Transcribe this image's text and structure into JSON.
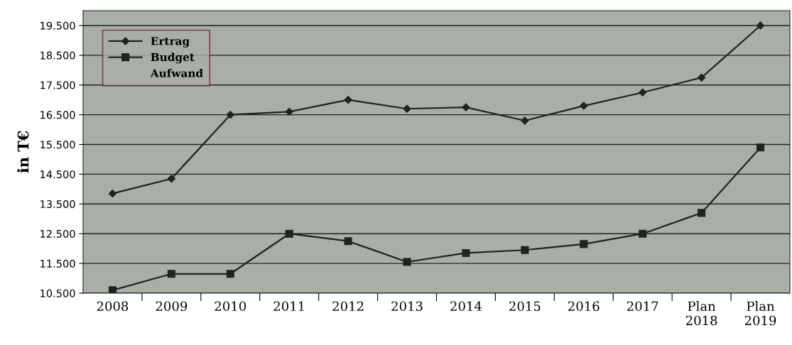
{
  "chart_data": {
    "type": "line",
    "ylabel": "in T€",
    "categories": [
      "2008",
      "2009",
      "2010",
      "2011",
      "2012",
      "2013",
      "2014",
      "2015",
      "2016",
      "2017",
      "Plan\n2018",
      "Plan\n2019"
    ],
    "series": [
      {
        "name": "Ertrag",
        "color": "#1e2420",
        "marker": "diamond",
        "values": [
          13850,
          14350,
          16500,
          16600,
          17000,
          16700,
          16750,
          16300,
          16800,
          17250,
          17750,
          19500
        ]
      },
      {
        "name": "Budget",
        "color": "#1e2420",
        "marker": "square",
        "values": [
          10600,
          11150,
          11150,
          12500,
          12250,
          11550,
          11850,
          11950,
          12150,
          12500,
          13200,
          15400
        ]
      },
      {
        "name": "Aufwand",
        "color": null,
        "values": [
          null,
          null,
          null,
          null,
          null,
          null,
          null,
          null,
          null,
          null,
          null,
          null
        ]
      }
    ],
    "ylim": [
      10500,
      20000
    ],
    "yticks": [
      {
        "value": 10500,
        "label": "10.500"
      },
      {
        "value": 11500,
        "label": "11.500"
      },
      {
        "value": 12500,
        "label": "12.500"
      },
      {
        "value": 13500,
        "label": "13.500"
      },
      {
        "value": 14500,
        "label": "14.500"
      },
      {
        "value": 15500,
        "label": "15.500"
      },
      {
        "value": 16500,
        "label": "16.500"
      },
      {
        "value": 17500,
        "label": "17.500"
      },
      {
        "value": 18500,
        "label": "18.500"
      },
      {
        "value": 19500,
        "label": "19.500"
      }
    ],
    "grid": "y",
    "legend": "top left"
  }
}
